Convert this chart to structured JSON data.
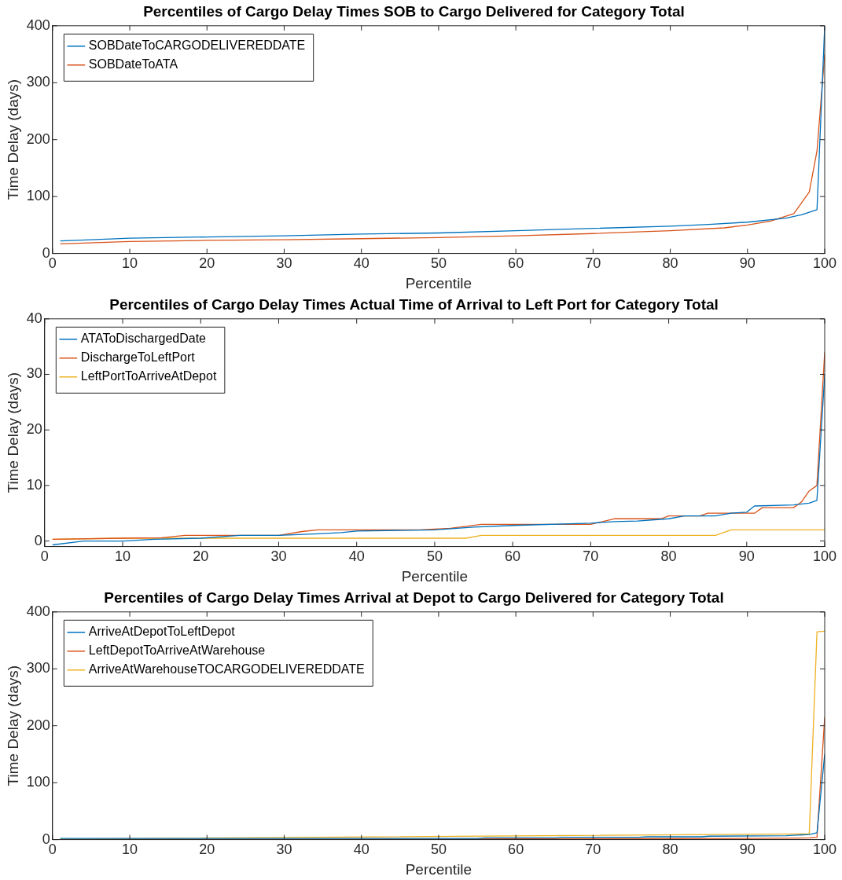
{
  "chart_data": [
    {
      "type": "line",
      "title": "Percentiles of Cargo Delay Times SOB to Cargo Delivered for Category Total",
      "xlabel": "Percentile",
      "ylabel": "Time Delay (days)",
      "xlim": [
        0,
        100
      ],
      "xticks": [
        0,
        10,
        20,
        30,
        40,
        50,
        60,
        70,
        80,
        90,
        100
      ],
      "ylim": [
        0,
        400
      ],
      "yticks": [
        0,
        100,
        200,
        300,
        400
      ],
      "grid": false,
      "legend": "top left",
      "line_style": "solid",
      "series": [
        {
          "name": "SOBDateToCARGODELIVEREDDATE",
          "color": "#0072bd",
          "x": [
            1,
            5,
            10,
            20,
            30,
            40,
            50,
            60,
            70,
            80,
            85,
            90,
            95,
            97,
            99,
            100
          ],
          "values": [
            22,
            24,
            27,
            29,
            31,
            34,
            36,
            40,
            44,
            48,
            51,
            55,
            62,
            68,
            77,
            400
          ]
        },
        {
          "name": "SOBDateToATA",
          "color": "#d95319",
          "x": [
            1,
            10,
            20,
            30,
            40,
            50,
            60,
            70,
            80,
            87,
            90,
            93,
            96,
            98,
            99,
            100
          ],
          "values": [
            17,
            21,
            23,
            24,
            26,
            28,
            31,
            35,
            40,
            45,
            50,
            57,
            70,
            108,
            180,
            350
          ]
        }
      ]
    },
    {
      "type": "line",
      "title": "Percentiles of Cargo Delay Times Actual Time of Arrival to Left Port for Category Total",
      "xlabel": "Percentile",
      "ylabel": "Time Delay (days)",
      "xlim": [
        0,
        100
      ],
      "xticks": [
        0,
        10,
        20,
        30,
        40,
        50,
        60,
        70,
        80,
        90,
        100
      ],
      "ylim": [
        -1,
        40
      ],
      "yticks": [
        0,
        10,
        20,
        30,
        40
      ],
      "grid": false,
      "legend": "top left",
      "line_style": "solid",
      "series": [
        {
          "name": "ATAToDischargedDate",
          "color": "#0072bd",
          "x": [
            1,
            5,
            10,
            14,
            20,
            25,
            30,
            35,
            38,
            40,
            50,
            55,
            60,
            70,
            73,
            76,
            80,
            82,
            86,
            88,
            90,
            91,
            96,
            98,
            99,
            100
          ],
          "values": [
            -0.7,
            0,
            0,
            0.3,
            0.5,
            1,
            1,
            1.3,
            1.5,
            1.8,
            2,
            2.5,
            2.8,
            3.2,
            3.5,
            3.6,
            4,
            4.5,
            4.5,
            5,
            5.2,
            6.3,
            6.5,
            6.8,
            7.3,
            30
          ]
        },
        {
          "name": "DischargeToLeftPort",
          "color": "#d95319",
          "x": [
            1,
            10,
            15,
            18,
            30,
            33,
            35,
            48,
            52,
            56,
            70,
            73,
            79,
            80,
            84,
            85,
            91,
            92,
            96,
            97,
            98,
            99,
            100
          ],
          "values": [
            0.3,
            0.5,
            0.6,
            1,
            1,
            1.7,
            2,
            2,
            2.3,
            3,
            3,
            4,
            4,
            4.5,
            4.5,
            5,
            5,
            6,
            6,
            7,
            9,
            10,
            34
          ]
        },
        {
          "name": "LeftPortToArriveAtDepot",
          "color": "#edb120",
          "x": [
            1,
            10,
            54,
            56,
            86,
            88,
            100
          ],
          "values": [
            0.3,
            0.5,
            0.5,
            1,
            1,
            2,
            2
          ]
        }
      ]
    },
    {
      "type": "line",
      "title": "Percentiles of Cargo Delay Times Arrival at Depot to Cargo Delivered for Category Total",
      "xlabel": "Percentile",
      "ylabel": "Time Delay (days)",
      "xlim": [
        0,
        100
      ],
      "xticks": [
        0,
        10,
        20,
        30,
        40,
        50,
        60,
        70,
        80,
        90,
        100
      ],
      "ylim": [
        0,
        400
      ],
      "yticks": [
        0,
        100,
        200,
        300,
        400
      ],
      "grid": false,
      "legend": "top left",
      "line_style": "solid",
      "series": [
        {
          "name": "ArriveAtDepotToLeftDepot",
          "color": "#0072bd",
          "x": [
            1,
            18,
            19,
            55,
            56,
            65,
            66,
            76,
            77,
            84,
            85,
            95,
            98,
            99,
            100
          ],
          "values": [
            2,
            2,
            2,
            2,
            3,
            3,
            4,
            4,
            5,
            5,
            6,
            7,
            9,
            12,
            150
          ]
        },
        {
          "name": "LeftDepotToArriveAtWarehouse",
          "color": "#d95319",
          "x": [
            1,
            50,
            90,
            98,
            99,
            100
          ],
          "values": [
            0,
            1,
            2,
            3,
            4,
            215
          ]
        },
        {
          "name": "ArriveAtWarehouseTOCARGODELIVEREDDATE",
          "color": "#edb120",
          "x": [
            1,
            98,
            99,
            100
          ],
          "values": [
            1,
            10,
            365,
            366
          ]
        }
      ]
    }
  ]
}
